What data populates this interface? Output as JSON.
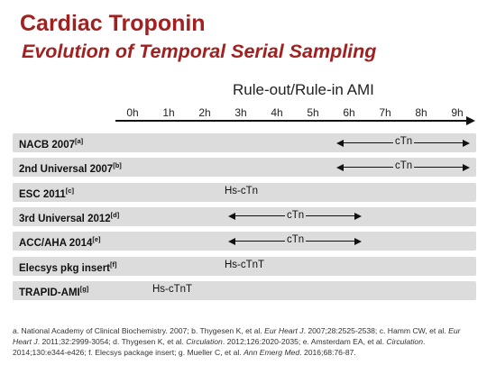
{
  "title": {
    "line1": "Cardiac Troponin",
    "line2": "Evolution of  Temporal Serial Sampling"
  },
  "axis": {
    "title": "Rule-out/Rule-in AMI",
    "ticks": [
      "0h",
      "1h",
      "2h",
      "3h",
      "4h",
      "5h",
      "6h",
      "7h",
      "8h",
      "9h"
    ]
  },
  "rows": [
    {
      "label": "NACB 2007",
      "ref": "[a]",
      "kind": "arrow",
      "from": 6,
      "to": 9,
      "text": "cTn"
    },
    {
      "label": "2nd Universal 2007",
      "ref": "[b]",
      "kind": "arrow",
      "from": 6,
      "to": 9,
      "text": "cTn"
    },
    {
      "label": "ESC 2011",
      "ref": "[c]",
      "kind": "text",
      "at": 3,
      "text": "Hs-cTn"
    },
    {
      "label": "3rd Universal 2012",
      "ref": "[d]",
      "kind": "arrow",
      "from": 3,
      "to": 6,
      "text": "cTn"
    },
    {
      "label": "ACC/AHA 2014",
      "ref": "[e]",
      "kind": "arrow",
      "from": 3,
      "to": 6,
      "text": "cTn"
    },
    {
      "label": "Elecsys pkg insert",
      "ref": "[f]",
      "kind": "text",
      "at": 3,
      "text": "Hs-cTnT"
    },
    {
      "label": "TRAPID-AMI",
      "ref": "[g]",
      "kind": "text",
      "at": 1,
      "text": "Hs-cTnT"
    }
  ],
  "footnote": {
    "p1": "a. National Academy of Clinical Biochemistry. 2007; b. Thygesen K, et al. ",
    "j1": "Eur Heart J",
    "p2": ". 2007;28:2525-2538; c. Hamm CW, et al. ",
    "j2": "Eur Heart J",
    "p3": ". 2011;32:2999-3054; d. Thygesen K, et al. ",
    "j3": "Circulation",
    "p4": ". 2012;126:2020-2035; e. Amsterdam EA, et al. ",
    "j4": "Circulation",
    "p5": ". 2014;130:e344-e426; f. Elecsys package insert; g. Mueller C, et al. ",
    "j5": "Ann Emerg Med",
    "p6": ". 2016;68:76-87."
  }
}
